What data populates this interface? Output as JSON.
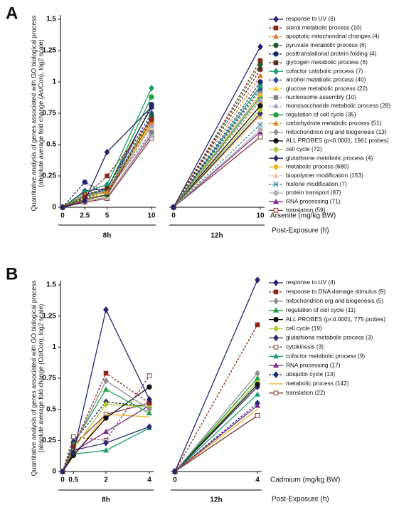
{
  "chart_data": [
    {
      "type": "line",
      "panel": "A",
      "ylabel": [
        "Quantitative analysis of genes associated with GO biological process",
        "(absolute average fold change (As/Con), log2 scale)"
      ],
      "xlabel": "Arsenite (mg/kg BW)",
      "time_label": "Post-Exposure (h)",
      "group_labels": [
        "8h",
        "12h"
      ],
      "x": [
        0,
        2.5,
        5,
        10
      ],
      "x2": [
        0,
        10
      ],
      "ylim": [
        0,
        1.5
      ],
      "yticks": [
        0,
        0.25,
        0.5,
        0.75,
        1,
        1.25,
        1.5
      ],
      "series": [
        {
          "name": "response to UV (6)",
          "color": "#24246e",
          "marker": "diamond",
          "dash": false,
          "values": [
            0,
            0.05,
            0.44,
            0.8
          ],
          "values2": [
            0,
            1.28
          ]
        },
        {
          "name": "sterol metabolic process (10)",
          "color": "#8b2a1a",
          "marker": "square",
          "dash": true,
          "values": [
            0,
            0.08,
            0.25,
            0.7
          ],
          "values2": [
            0,
            1.17
          ]
        },
        {
          "name": "apoptotic mitochondrial changes (4)",
          "color": "#e07b2a",
          "marker": "triangle",
          "dash": true,
          "values": [
            0,
            0.1,
            0.12,
            0.68
          ],
          "values2": [
            0,
            1.05
          ]
        },
        {
          "name": "pyruvate metabolic process (6)",
          "color": "#1e5a32",
          "marker": "circle",
          "dash": true,
          "values": [
            0,
            0.07,
            0.1,
            0.73
          ],
          "values2": [
            0,
            1.14
          ]
        },
        {
          "name": "posttranslational protein folding (4)",
          "color": "#1a2a6a",
          "marker": "circle",
          "dash": true,
          "values": [
            0,
            0.2,
            0.1,
            0.82
          ],
          "values2": [
            0,
            1.0
          ]
        },
        {
          "name": "glycogen metabolic process (6)",
          "color": "#5a2a1a",
          "marker": "square",
          "dash": true,
          "values": [
            0,
            0.1,
            0.15,
            0.8
          ],
          "values2": [
            0,
            1.1
          ]
        },
        {
          "name": "cofactor catabolic process (7)",
          "color": "#1ca06a",
          "marker": "diamond",
          "dash": false,
          "values": [
            0,
            0.12,
            0.18,
            0.95
          ],
          "values2": [
            0,
            0.97
          ]
        },
        {
          "name": "alcohol metabolic process (40)",
          "color": "#2a4aa0",
          "marker": "diamond",
          "dash": true,
          "values": [
            0,
            0.08,
            0.15,
            0.75
          ],
          "values2": [
            0,
            0.95
          ]
        },
        {
          "name": "glucose metabolic process (22)",
          "color": "#f0c020",
          "marker": "triangle",
          "dash": true,
          "values": [
            0,
            0.07,
            0.12,
            0.7
          ],
          "values2": [
            0,
            0.9
          ]
        },
        {
          "name": "nucleosome assembly (10)",
          "color": "#808080",
          "marker": "square",
          "dash": true,
          "values": [
            0,
            0.08,
            0.12,
            0.6
          ],
          "values2": [
            0,
            0.93
          ]
        },
        {
          "name": "monosaccharide metabolic process (28)",
          "color": "#b0a0d0",
          "marker": "triangle",
          "dash": true,
          "values": [
            0,
            0.07,
            0.1,
            0.65
          ],
          "values2": [
            0,
            0.86
          ]
        },
        {
          "name": "regulation of cell cycle (35)",
          "color": "#20a040",
          "marker": "circle",
          "dash": false,
          "values": [
            0,
            0.1,
            0.14,
            0.88
          ],
          "values2": [
            0,
            0.88
          ]
        },
        {
          "name": "carbohydrate metabolic process (51)",
          "color": "#e09020",
          "marker": "triangle",
          "dash": true,
          "values": [
            0,
            0.06,
            0.1,
            0.66
          ],
          "values2": [
            0,
            0.85
          ]
        },
        {
          "name": "mitochondrion org and biogenesis (13)",
          "color": "#909090",
          "marker": "diamond",
          "dash": false,
          "values": [
            0,
            0.09,
            0.13,
            0.72
          ],
          "values2": [
            0,
            0.9
          ]
        },
        {
          "name": "ALL PROBES (p<0.0001, 1961 probes)",
          "color": "#111111",
          "marker": "circle",
          "dash": false,
          "values": [
            0,
            0.06,
            0.1,
            0.7
          ],
          "values2": [
            0,
            0.81
          ]
        },
        {
          "name": "cell cycle (72)",
          "color": "#b0c830",
          "marker": "diamond",
          "dash": false,
          "values": [
            0,
            0.08,
            0.12,
            0.68
          ],
          "values2": [
            0,
            0.78
          ]
        },
        {
          "name": "glutathione metabolic process (4)",
          "color": "#2a2a7a",
          "marker": "diamond",
          "dash": false,
          "values": [
            0,
            0.13,
            0.15,
            0.8
          ],
          "values2": [
            0,
            0.75
          ]
        },
        {
          "name": "metabolic process (680)",
          "color": "#f0b020",
          "marker": "diamond",
          "dash": false,
          "values": [
            0,
            0.06,
            0.1,
            0.66
          ],
          "values2": [
            0,
            0.74
          ]
        },
        {
          "name": "biopolymer modification (153)",
          "color": "#f0c8a0",
          "marker": "triangle",
          "dash": true,
          "values": [
            0,
            0.06,
            0.09,
            0.64
          ],
          "values2": [
            0,
            0.72
          ]
        },
        {
          "name": "histone modification (7)",
          "color": "#2a8aa0",
          "marker": "x",
          "dash": true,
          "values": [
            0,
            0.07,
            0.12,
            0.6
          ],
          "values2": [
            0,
            0.66
          ]
        },
        {
          "name": "protein transport (87)",
          "color": "#b0b0b0",
          "marker": "circle",
          "dash": false,
          "values": [
            0,
            0.05,
            0.08,
            0.57
          ],
          "values2": [
            0,
            0.62
          ]
        },
        {
          "name": "RNA processing (71)",
          "color": "#7a2a8a",
          "marker": "triangle",
          "dash": false,
          "values": [
            0,
            0.05,
            0.08,
            0.58
          ],
          "values2": [
            0,
            0.6
          ]
        },
        {
          "name": "translation (59)",
          "color": "#8a3a3a",
          "marker": "open-square",
          "dash": false,
          "values": [
            0,
            0.04,
            0.07,
            0.55
          ],
          "values2": [
            0,
            0.56
          ]
        }
      ]
    },
    {
      "type": "line",
      "panel": "B",
      "ylabel": [
        "Quantitative analysis of genes associated with GO biological process",
        "(absolute average fold change (Cd/Con), log2 scale)"
      ],
      "xlabel": "Cadmium (mg/kg BW)",
      "time_label": "Post-Exposure (h)",
      "group_labels": [
        "8h",
        "12h"
      ],
      "x": [
        0,
        0.5,
        2,
        4
      ],
      "x2": [
        0,
        4
      ],
      "ylim": [
        0,
        1.5
      ],
      "yticks": [
        0,
        0.25,
        0.5,
        0.75,
        1,
        1.25,
        1.5
      ],
      "series": [
        {
          "name": "response to UV (4)",
          "color": "#24246e",
          "marker": "diamond",
          "dash": false,
          "values": [
            0,
            0.15,
            1.3,
            0.58
          ],
          "values2": [
            0,
            1.54
          ]
        },
        {
          "name": "response to DNA damage stimulus (9)",
          "color": "#8b2a1a",
          "marker": "square",
          "dash": true,
          "values": [
            0,
            0.2,
            0.79,
            0.55
          ],
          "values2": [
            0,
            1.18
          ]
        },
        {
          "name": "mitochondrion org and biogenesis (5)",
          "color": "#909090",
          "marker": "diamond",
          "dash": false,
          "values": [
            0,
            0.2,
            0.73,
            0.5
          ],
          "values2": [
            0,
            0.79
          ]
        },
        {
          "name": "regulation of cell cycle (11)",
          "color": "#20a040",
          "marker": "triangle",
          "dash": false,
          "values": [
            0,
            0.22,
            0.66,
            0.47
          ],
          "values2": [
            0,
            0.75
          ]
        },
        {
          "name": "ALL PROBES (p<0.0001, 775 probes)",
          "color": "#111111",
          "marker": "circle",
          "dash": false,
          "values": [
            0,
            0.13,
            0.43,
            0.68
          ],
          "values2": [
            0,
            0.7
          ]
        },
        {
          "name": "cell cycle (19)",
          "color": "#b0c830",
          "marker": "diamond",
          "dash": false,
          "values": [
            0,
            0.18,
            0.54,
            0.52
          ],
          "values2": [
            0,
            0.72
          ]
        },
        {
          "name": "glutathione metabolic process (3)",
          "color": "#2a2a7a",
          "marker": "diamond",
          "dash": false,
          "values": [
            0,
            0.17,
            0.23,
            0.36
          ],
          "values2": [
            0,
            0.68
          ]
        },
        {
          "name": "cytokinesis (3)",
          "color": "#8a3a3a",
          "marker": "open-square",
          "dash": true,
          "values": [
            0,
            0.28,
            0.25,
            0.77
          ],
          "values2": [
            0,
            0.45
          ]
        },
        {
          "name": "cofactor metabolic process (9)",
          "color": "#1ca06a",
          "marker": "triangle",
          "dash": false,
          "values": [
            0,
            0.14,
            0.17,
            0.35
          ],
          "values2": [
            0,
            0.62
          ]
        },
        {
          "name": "RNA processing (17)",
          "color": "#7a2a8a",
          "marker": "triangle",
          "dash": false,
          "values": [
            0,
            0.16,
            0.32,
            0.53
          ],
          "values2": [
            0,
            0.53
          ]
        },
        {
          "name": "ubiquitin cycle (13)",
          "color": "#1a2a6a",
          "marker": "diamond",
          "dash": true,
          "values": [
            0,
            0.24,
            0.56,
            0.52
          ],
          "values2": [
            0,
            0.55
          ]
        },
        {
          "name": "metabolic process (142)",
          "color": "#f0b020",
          "marker": "none",
          "dash": false,
          "values": [
            0,
            0.12,
            0.46,
            0.44
          ],
          "values2": [
            0,
            0.5
          ]
        },
        {
          "name": "translation (22)",
          "color": "#8a3a3a",
          "marker": "open-square",
          "dash": false,
          "values": [
            0,
            0.21,
            0.46,
            0.55
          ],
          "values2": [
            0,
            0.45
          ]
        }
      ]
    }
  ]
}
